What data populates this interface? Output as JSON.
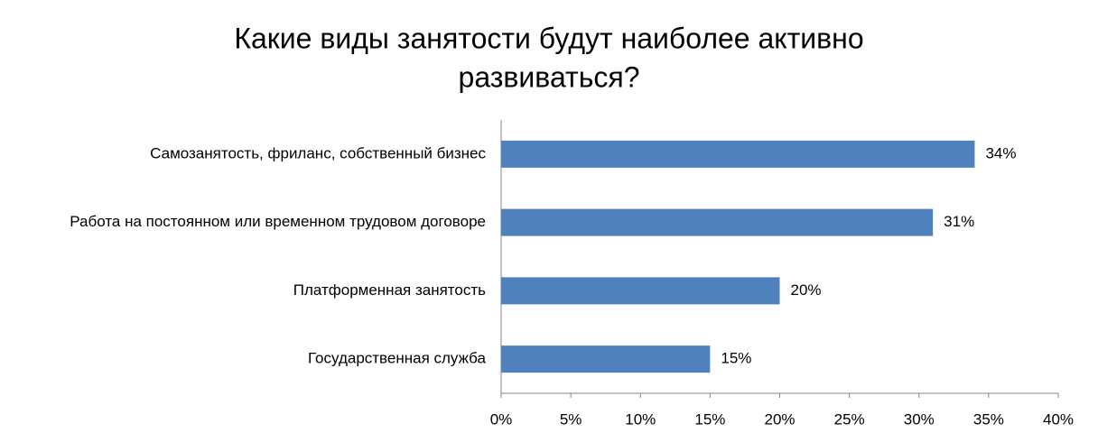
{
  "chart_data": {
    "type": "hbar",
    "title": [
      "Какие виды занятости будут наиболее активно",
      "развиваться?"
    ],
    "categories": [
      "Самозанятость, фриланс, собственный бизнес",
      "Работа на постоянном или временном трудовом договоре",
      "Платформенная занятость",
      "Государственная служба"
    ],
    "values": [
      34,
      31,
      20,
      15
    ],
    "value_labels": [
      "34%",
      "31%",
      "20%",
      "15%"
    ],
    "color": "#4f81bd",
    "xlim": [
      0,
      40
    ],
    "xticks": [
      {
        "value": 0,
        "label": "0%"
      },
      {
        "value": 5,
        "label": "5%"
      },
      {
        "value": 10,
        "label": "10%"
      },
      {
        "value": 15,
        "label": "15%"
      },
      {
        "value": 20,
        "label": "20%"
      },
      {
        "value": 25,
        "label": "25%"
      },
      {
        "value": 30,
        "label": "30%"
      },
      {
        "value": 35,
        "label": "35%"
      },
      {
        "value": 40,
        "label": "40%"
      }
    ],
    "grid": false
  }
}
